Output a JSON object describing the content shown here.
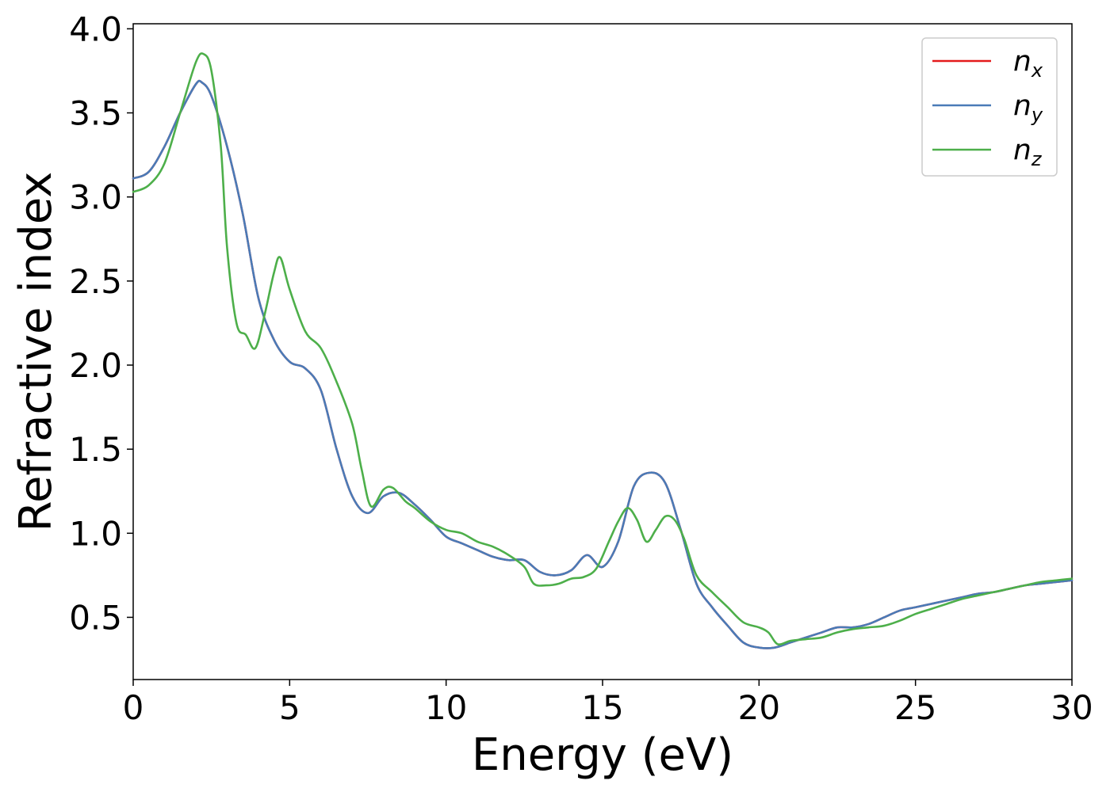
{
  "chart_data": {
    "type": "line",
    "title": "",
    "xlabel": "Energy (eV)",
    "ylabel": "Refractive index",
    "xlim": [
      0,
      30
    ],
    "ylim": [
      0.13,
      4.03
    ],
    "xticks": [
      0,
      5,
      10,
      15,
      20,
      25,
      30
    ],
    "xtick_labels": [
      "0",
      "5",
      "10",
      "15",
      "20",
      "25",
      "30"
    ],
    "yticks": [
      0.5,
      1.0,
      1.5,
      2.0,
      2.5,
      3.0,
      3.5,
      4.0
    ],
    "ytick_labels": [
      "0.5",
      "1.0",
      "1.5",
      "2.0",
      "2.5",
      "3.0",
      "3.5",
      "4.0"
    ],
    "grid": false,
    "legend_position": "top-right",
    "colors": {
      "n_x": "#e41a1c",
      "n_y": "#4a7bb7",
      "n_z": "#4daf4a"
    },
    "series": [
      {
        "name": "n_x",
        "label_base": "n",
        "label_sub": "x",
        "x": [
          0,
          0.5,
          1,
          1.5,
          2,
          2.2,
          2.5,
          3,
          3.5,
          4,
          4.5,
          5,
          5.5,
          6,
          6.5,
          7,
          7.5,
          8,
          8.5,
          9,
          9.5,
          10,
          10.5,
          11,
          11.5,
          12,
          12.5,
          13,
          13.5,
          14,
          14.5,
          15,
          15.5,
          16,
          16.5,
          17,
          17.5,
          18,
          18.5,
          19,
          19.5,
          20,
          20.5,
          21,
          21.5,
          22,
          22.5,
          23,
          23.5,
          24,
          24.5,
          25,
          25.5,
          26,
          26.5,
          27,
          27.5,
          28,
          28.5,
          29,
          29.5,
          30
        ],
        "y": [
          3.11,
          3.15,
          3.3,
          3.5,
          3.67,
          3.68,
          3.6,
          3.3,
          2.9,
          2.4,
          2.15,
          2.02,
          1.98,
          1.85,
          1.5,
          1.22,
          1.12,
          1.22,
          1.24,
          1.17,
          1.08,
          0.98,
          0.94,
          0.9,
          0.86,
          0.84,
          0.84,
          0.77,
          0.75,
          0.78,
          0.87,
          0.8,
          0.95,
          1.28,
          1.36,
          1.3,
          1.02,
          0.7,
          0.56,
          0.45,
          0.35,
          0.32,
          0.32,
          0.35,
          0.38,
          0.41,
          0.44,
          0.44,
          0.46,
          0.5,
          0.54,
          0.56,
          0.58,
          0.6,
          0.62,
          0.64,
          0.65,
          0.67,
          0.69,
          0.7,
          0.71,
          0.72
        ]
      },
      {
        "name": "n_y",
        "label_base": "n",
        "label_sub": "y",
        "x": [
          0,
          0.5,
          1,
          1.5,
          2,
          2.2,
          2.5,
          3,
          3.5,
          4,
          4.5,
          5,
          5.5,
          6,
          6.5,
          7,
          7.5,
          8,
          8.5,
          9,
          9.5,
          10,
          10.5,
          11,
          11.5,
          12,
          12.5,
          13,
          13.5,
          14,
          14.5,
          15,
          15.5,
          16,
          16.5,
          17,
          17.5,
          18,
          18.5,
          19,
          19.5,
          20,
          20.5,
          21,
          21.5,
          22,
          22.5,
          23,
          23.5,
          24,
          24.5,
          25,
          25.5,
          26,
          26.5,
          27,
          27.5,
          28,
          28.5,
          29,
          29.5,
          30
        ],
        "y": [
          3.11,
          3.15,
          3.3,
          3.5,
          3.67,
          3.68,
          3.6,
          3.3,
          2.9,
          2.4,
          2.15,
          2.02,
          1.98,
          1.85,
          1.5,
          1.22,
          1.12,
          1.22,
          1.24,
          1.17,
          1.08,
          0.98,
          0.94,
          0.9,
          0.86,
          0.84,
          0.84,
          0.77,
          0.75,
          0.78,
          0.87,
          0.8,
          0.95,
          1.28,
          1.36,
          1.3,
          1.02,
          0.7,
          0.56,
          0.45,
          0.35,
          0.32,
          0.32,
          0.35,
          0.38,
          0.41,
          0.44,
          0.44,
          0.46,
          0.5,
          0.54,
          0.56,
          0.58,
          0.6,
          0.62,
          0.64,
          0.65,
          0.67,
          0.69,
          0.7,
          0.71,
          0.72
        ]
      },
      {
        "name": "n_z",
        "label_base": "n",
        "label_sub": "z",
        "x": [
          0,
          0.5,
          1,
          1.5,
          2,
          2.25,
          2.5,
          2.8,
          3.0,
          3.3,
          3.6,
          3.9,
          4.2,
          4.5,
          4.7,
          5.0,
          5.5,
          6.0,
          6.5,
          7.0,
          7.3,
          7.6,
          8.0,
          8.3,
          8.7,
          9.0,
          9.5,
          10,
          10.5,
          11,
          11.5,
          12,
          12.5,
          12.8,
          13.2,
          13.6,
          14.0,
          14.4,
          14.8,
          15.2,
          15.5,
          15.8,
          16.1,
          16.4,
          16.7,
          17.0,
          17.3,
          17.6,
          18.0,
          18.5,
          19.0,
          19.5,
          20.0,
          20.3,
          20.6,
          21,
          21.5,
          22,
          22.5,
          23,
          23.5,
          24,
          24.5,
          25,
          25.5,
          26,
          26.5,
          27,
          27.5,
          28,
          28.5,
          29,
          29.5,
          30
        ],
        "y": [
          3.03,
          3.07,
          3.2,
          3.5,
          3.8,
          3.85,
          3.75,
          3.3,
          2.7,
          2.25,
          2.18,
          2.1,
          2.3,
          2.55,
          2.64,
          2.45,
          2.2,
          2.1,
          1.9,
          1.65,
          1.38,
          1.16,
          1.26,
          1.27,
          1.19,
          1.15,
          1.07,
          1.02,
          1.0,
          0.95,
          0.92,
          0.87,
          0.8,
          0.7,
          0.69,
          0.7,
          0.73,
          0.74,
          0.79,
          0.95,
          1.07,
          1.15,
          1.08,
          0.95,
          1.02,
          1.1,
          1.08,
          0.97,
          0.75,
          0.65,
          0.56,
          0.47,
          0.44,
          0.41,
          0.34,
          0.36,
          0.37,
          0.38,
          0.41,
          0.43,
          0.44,
          0.45,
          0.48,
          0.52,
          0.55,
          0.58,
          0.61,
          0.63,
          0.65,
          0.67,
          0.69,
          0.71,
          0.72,
          0.73
        ]
      }
    ]
  }
}
